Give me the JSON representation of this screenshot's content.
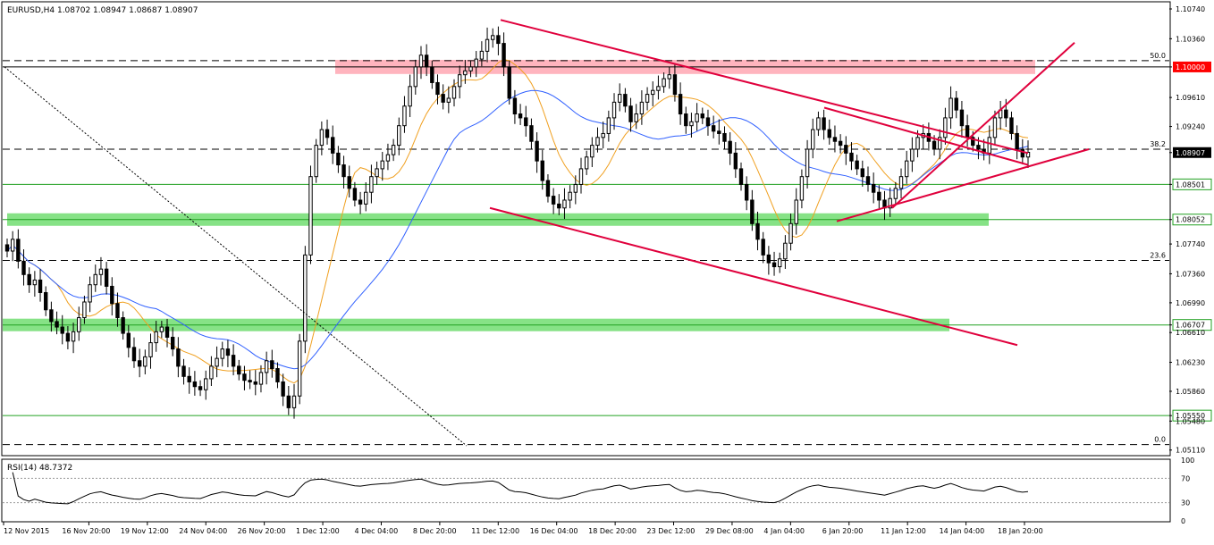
{
  "chart_data": [
    {
      "type": "candlestick",
      "symbol_header": "EURUSD,H4  1.08702 1.08947 1.08687 1.08907",
      "y_axis_ticks": [
        "1.10740",
        "1.10360",
        "1.10000",
        "1.09610",
        "1.09240",
        "1.08907",
        "1.08501",
        "1.08052",
        "1.07740",
        "1.07360",
        "1.06990",
        "1.06707",
        "1.06610",
        "1.06230",
        "1.05860",
        "1.05550",
        "1.05480",
        "1.05110"
      ],
      "ylim": [
        1.0505,
        1.1082
      ],
      "x_axis_ticks": [
        "12 Nov 2015",
        "16 Nov 20:00",
        "19 Nov 12:00",
        "24 Nov 04:00",
        "26 Nov 20:00",
        "1 Dec 12:00",
        "4 Dec 04:00",
        "8 Dec 20:00",
        "11 Dec 12:00",
        "16 Dec 04:00",
        "18 Dec 20:00",
        "23 Dec 12:00",
        "29 Dec 08:00",
        "4 Jan 04:00",
        "6 Jan 20:00",
        "11 Jan 12:00",
        "14 Jan 04:00",
        "18 Jan 20:00"
      ],
      "close_series": [
        1.0765,
        1.078,
        1.0752,
        1.0735,
        1.0722,
        1.0728,
        1.0712,
        1.069,
        1.0675,
        1.0668,
        1.066,
        1.065,
        1.0662,
        1.068,
        1.07,
        1.0722,
        1.0735,
        1.0742,
        1.072,
        1.0698,
        1.068,
        1.066,
        1.0642,
        1.0625,
        1.0618,
        1.063,
        1.0648,
        1.0662,
        1.0668,
        1.0655,
        1.064,
        1.0618,
        1.0605,
        1.0598,
        1.0592,
        1.0588,
        1.0602,
        1.0618,
        1.0628,
        1.064,
        1.0632,
        1.0618,
        1.0608,
        1.06,
        1.0598,
        1.0595,
        1.061,
        1.0625,
        1.0615,
        1.0598,
        1.058,
        1.0565,
        1.058,
        1.065,
        1.076,
        1.086,
        1.09,
        1.092,
        1.091,
        1.089,
        1.0875,
        1.086,
        1.0845,
        1.083,
        1.0825,
        1.084,
        1.086,
        1.087,
        1.088,
        1.0888,
        1.09,
        1.0925,
        1.095,
        1.0975,
        1.1,
        1.1015,
        1.1,
        1.098,
        1.0965,
        1.0955,
        1.096,
        1.0975,
        1.099,
        1.0995,
        1.1,
        1.101,
        1.102,
        1.1035,
        1.104,
        1.103,
        1.1,
        1.096,
        1.094,
        1.0935,
        1.0925,
        1.0905,
        1.088,
        1.0855,
        1.0835,
        1.0825,
        1.082,
        1.083,
        1.084,
        1.085,
        1.087,
        1.0885,
        1.09,
        1.091,
        1.0915,
        1.0935,
        1.0955,
        1.0965,
        1.095,
        1.093,
        1.094,
        1.0955,
        1.0965,
        1.097,
        1.0975,
        1.0985,
        1.099,
        1.0965,
        1.094,
        1.0925,
        1.093,
        1.094,
        1.0935,
        1.0925,
        1.0918,
        1.0915,
        1.0905,
        1.089,
        1.087,
        1.085,
        1.083,
        1.08,
        1.078,
        1.076,
        1.075,
        1.0745,
        1.0755,
        1.0775,
        1.08,
        1.083,
        1.086,
        1.0895,
        1.092,
        1.0935,
        1.092,
        1.091,
        1.0905,
        1.09,
        1.089,
        1.088,
        1.087,
        1.086,
        1.085,
        1.084,
        1.083,
        1.082,
        1.0832,
        1.0845,
        1.086,
        1.088,
        1.0895,
        1.091,
        1.0915,
        1.0905,
        1.0895,
        1.091,
        1.0935,
        1.096,
        1.0945,
        1.0925,
        1.091,
        1.09,
        1.0895,
        1.089,
        1.091,
        1.0935,
        1.0945,
        1.0935,
        1.0915,
        1.0895,
        1.0885,
        1.0891
      ],
      "support_resistance_levels": [
        {
          "value": 1.1,
          "label": "1.10000",
          "style": "red"
        },
        {
          "value": 1.08907,
          "label": "1.08907",
          "style": "black"
        },
        {
          "value": 1.08501,
          "label": "1.08501",
          "style": "green"
        },
        {
          "value": 1.08052,
          "label": "1.08052",
          "style": "green"
        },
        {
          "value": 1.06707,
          "label": "1.06707",
          "style": "green"
        },
        {
          "value": 1.0555,
          "label": "1.05550",
          "style": "green"
        }
      ],
      "fib_levels": [
        {
          "value": 1.1008,
          "label": "50.0"
        },
        {
          "value": 1.0895,
          "label": "38.2"
        },
        {
          "value": 1.0753,
          "label": "23.6"
        },
        {
          "value": 1.0518,
          "label": "0.0"
        }
      ],
      "colors": {
        "ma_fast": "#f0a020",
        "ma_slow": "#3060ff",
        "trendline": "#e0003c",
        "zone_green": "#7fe07f",
        "zone_pink": "#ffb0bb",
        "candle": "#000000",
        "level_green": "#20a020",
        "tag_red": "#ff0000"
      }
    },
    {
      "type": "line",
      "title": "RSI(14) 48.7372",
      "y_axis_ticks": [
        "100",
        "70",
        "30",
        "0"
      ],
      "ylim": [
        0,
        100
      ],
      "levels": [
        70,
        30
      ]
    }
  ]
}
